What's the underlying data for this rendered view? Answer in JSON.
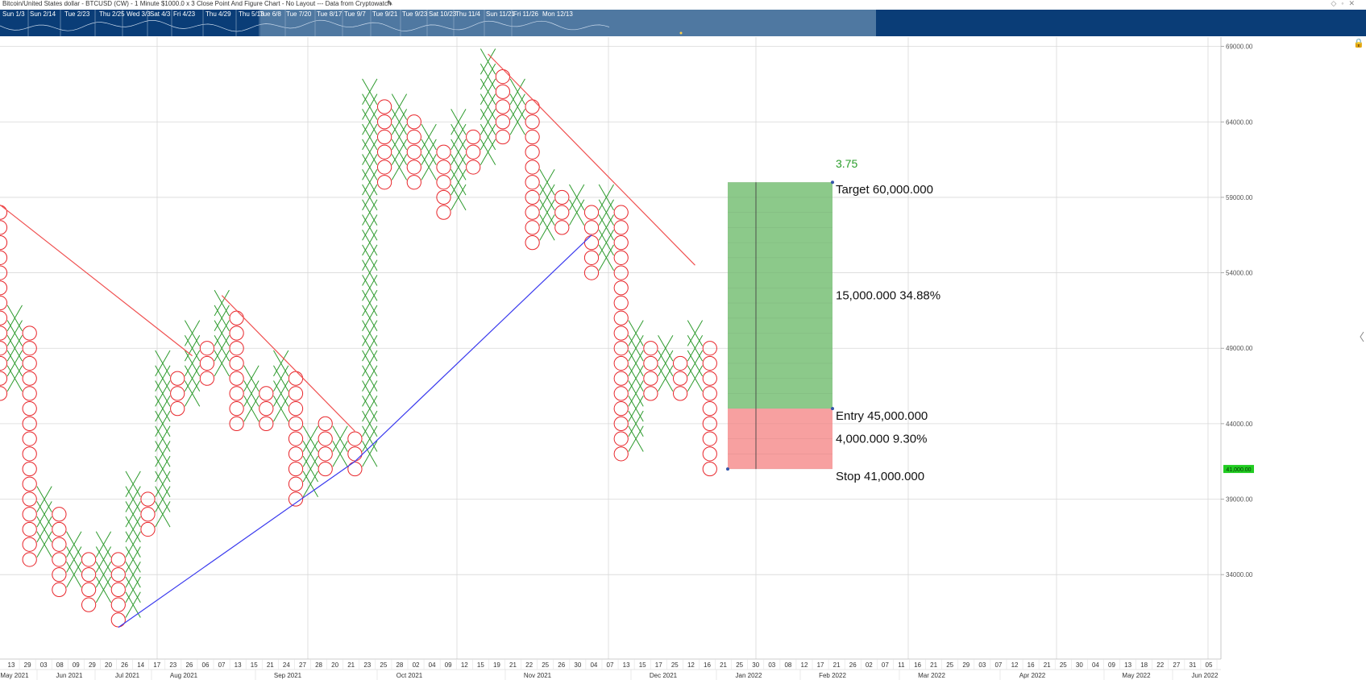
{
  "window": {
    "title": "Bitcoin/United States dollar - BTCUSD (CW) - 1 Minute $1000.0 x 3 Close Point And Figure Chart - No Layout --- Data from Cryptowatch",
    "edit_icon": "pencil-icon",
    "controls_icon": "window-controls-icon",
    "lock_icon": "lock-icon"
  },
  "navigator": {
    "dates": [
      "Sun 1/3",
      "Sun 2/14",
      "Tue 2/23",
      "Thu 2/25",
      "Wed 3/3",
      "Sat 4/3",
      "Fri 4/23",
      "Thu 4/29",
      "Thu 5/13",
      "Tue 6/8",
      "Tue 7/20",
      "Tue 8/17",
      "Tue 9/7",
      "Tue 9/21",
      "Tue 9/23",
      "Sat 10/23",
      "Thu 11/4",
      "Sun 11/21",
      "Fri 11/26",
      "Mon 12/13"
    ]
  },
  "colors": {
    "x_box": "#2e9b2e",
    "o_box": "#e8262b",
    "resistance_line": "#f05050",
    "support_line": "#3a3aee",
    "target_zone": "#8cc98a",
    "stop_zone": "#f7a0a0",
    "price_tag": "#22cc22"
  },
  "chart_data": {
    "type": "point_and_figure",
    "box_size": 1000,
    "reversal": 3,
    "y_axis": {
      "labels": [
        "69000.00",
        "64000.00",
        "59000.00",
        "54000.00",
        "49000.00",
        "44000.00",
        "39000.00",
        "34000.00"
      ],
      "range": [
        30000,
        71000
      ]
    },
    "x_axis": {
      "day_ticks": [
        "13",
        "29",
        "03",
        "08",
        "09",
        "29",
        "20",
        "26",
        "14",
        "17",
        "23",
        "26",
        "06",
        "07",
        "13",
        "15",
        "21",
        "24",
        "27",
        "28",
        "20",
        "21",
        "23",
        "25",
        "28",
        "02",
        "04",
        "09",
        "12",
        "15",
        "19",
        "21",
        "22",
        "25",
        "26",
        "30",
        "04",
        "07",
        "13",
        "15",
        "17",
        "25",
        "12",
        "16",
        "21",
        "25",
        "30",
        "03",
        "08",
        "12",
        "17",
        "21",
        "26",
        "02",
        "07",
        "11",
        "16",
        "21",
        "25",
        "29",
        "03",
        "07",
        "12",
        "16",
        "21",
        "25",
        "30",
        "04",
        "09",
        "13",
        "18",
        "22",
        "27",
        "31",
        "05"
      ],
      "month_labels": [
        "May 2021",
        "Jun 2021",
        "Jul 2021",
        "Aug 2021",
        "Sep 2021",
        "Oct 2021",
        "Nov 2021",
        "Dec 2021",
        "Jan 2022",
        "Feb 2022",
        "Mar 2022",
        "Apr 2022",
        "May 2022",
        "Jun 2022"
      ]
    },
    "columns": [
      {
        "type": "O",
        "low": 46000,
        "high": 58000
      },
      {
        "type": "X",
        "low": 47000,
        "high": 51000
      },
      {
        "type": "O",
        "low": 35000,
        "high": 50000
      },
      {
        "type": "X",
        "low": 36000,
        "high": 39000
      },
      {
        "type": "O",
        "low": 33000,
        "high": 38000
      },
      {
        "type": "X",
        "low": 34000,
        "high": 36000
      },
      {
        "type": "O",
        "low": 32000,
        "high": 35000
      },
      {
        "type": "X",
        "low": 33000,
        "high": 36000
      },
      {
        "type": "O",
        "low": 31000,
        "high": 35000
      },
      {
        "type": "X",
        "low": 32000,
        "high": 40000
      },
      {
        "type": "O",
        "low": 37000,
        "high": 39000
      },
      {
        "type": "X",
        "low": 38000,
        "high": 48000
      },
      {
        "type": "O",
        "low": 45000,
        "high": 47000
      },
      {
        "type": "X",
        "low": 46000,
        "high": 50000
      },
      {
        "type": "O",
        "low": 47000,
        "high": 49000
      },
      {
        "type": "X",
        "low": 48000,
        "high": 52000
      },
      {
        "type": "O",
        "low": 44000,
        "high": 51000
      },
      {
        "type": "X",
        "low": 45000,
        "high": 47000
      },
      {
        "type": "O",
        "low": 44000,
        "high": 46000
      },
      {
        "type": "X",
        "low": 45000,
        "high": 48000
      },
      {
        "type": "O",
        "low": 39000,
        "high": 47000
      },
      {
        "type": "X",
        "low": 40000,
        "high": 43000
      },
      {
        "type": "O",
        "low": 41000,
        "high": 44000
      },
      {
        "type": "X",
        "low": 42000,
        "high": 43000
      },
      {
        "type": "O",
        "low": 41000,
        "high": 43000
      },
      {
        "type": "X",
        "low": 42000,
        "high": 66000
      },
      {
        "type": "O",
        "low": 60000,
        "high": 65000
      },
      {
        "type": "X",
        "low": 61000,
        "high": 65000
      },
      {
        "type": "O",
        "low": 60000,
        "high": 64000
      },
      {
        "type": "X",
        "low": 61000,
        "high": 63000
      },
      {
        "type": "O",
        "low": 58000,
        "high": 62000
      },
      {
        "type": "X",
        "low": 59000,
        "high": 64000
      },
      {
        "type": "O",
        "low": 61000,
        "high": 63000
      },
      {
        "type": "X",
        "low": 62000,
        "high": 68000
      },
      {
        "type": "O",
        "low": 63000,
        "high": 67000
      },
      {
        "type": "X",
        "low": 64000,
        "high": 66000
      },
      {
        "type": "O",
        "low": 56000,
        "high": 65000
      },
      {
        "type": "X",
        "low": 57000,
        "high": 60000
      },
      {
        "type": "O",
        "low": 57000,
        "high": 59000
      },
      {
        "type": "X",
        "low": 58000,
        "high": 59000
      },
      {
        "type": "O",
        "low": 54000,
        "high": 58000
      },
      {
        "type": "X",
        "low": 55000,
        "high": 59000
      },
      {
        "type": "O",
        "low": 42000,
        "high": 58000
      },
      {
        "type": "X",
        "low": 43000,
        "high": 50000
      },
      {
        "type": "O",
        "low": 46000,
        "high": 49000
      },
      {
        "type": "X",
        "low": 47000,
        "high": 49000
      },
      {
        "type": "O",
        "low": 46000,
        "high": 48000
      },
      {
        "type": "X",
        "low": 47000,
        "high": 50000
      },
      {
        "type": "O",
        "low": 41000,
        "high": 49000
      }
    ],
    "trend_lines": [
      {
        "kind": "resistance",
        "from": {
          "col": 0,
          "price": 58500
        },
        "to": {
          "col": 13,
          "price": 48500
        }
      },
      {
        "kind": "resistance",
        "from": {
          "col": 15,
          "price": 52500
        },
        "to": {
          "col": 24,
          "price": 43500
        }
      },
      {
        "kind": "resistance",
        "from": {
          "col": 33,
          "price": 68500
        },
        "to": {
          "col": 47,
          "price": 54500
        }
      },
      {
        "kind": "support",
        "from": {
          "col": 8,
          "price": 30500
        },
        "to": {
          "col": 24,
          "price": 41500
        }
      },
      {
        "kind": "support",
        "from": {
          "col": 24,
          "price": 41500
        },
        "to": {
          "col": 40,
          "price": 56500
        }
      }
    ],
    "position": {
      "entry": 45000,
      "target": 60000,
      "stop": 41000,
      "ratio": "3.75",
      "target_label": "Target  60,000.000",
      "entry_label": "Entry  45,000.000",
      "stop_label": "Stop  41,000.000",
      "reward_label": "15,000.000  34.88%",
      "risk_label": "4,000.000  9.30%"
    },
    "last_price_tag": "41,000.00"
  }
}
